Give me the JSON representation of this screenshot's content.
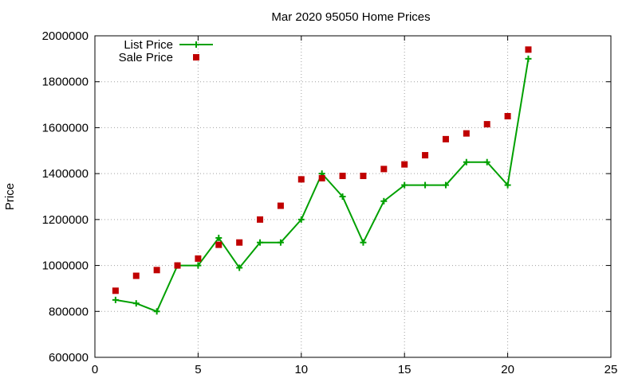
{
  "chart_data": {
    "type": "line",
    "title": "Mar 2020 95050 Home Prices",
    "xlabel": "",
    "ylabel": "Price",
    "xlim": [
      0,
      25
    ],
    "ylim": [
      600000,
      2000000
    ],
    "xticks": [
      0,
      5,
      10,
      15,
      20,
      25
    ],
    "yticks": [
      600000,
      800000,
      1000000,
      1200000,
      1400000,
      1600000,
      1800000,
      2000000
    ],
    "grid": true,
    "legend_position": "top-left",
    "series": [
      {
        "name": "List Price",
        "style": "line-with-plus-markers",
        "color": "#00a000",
        "x": [
          1,
          2,
          3,
          4,
          5,
          6,
          7,
          8,
          9,
          10,
          11,
          12,
          13,
          14,
          15,
          16,
          17,
          18,
          19,
          20,
          21
        ],
        "values": [
          850000,
          835000,
          800000,
          1000000,
          1000000,
          1120000,
          990000,
          1100000,
          1100000,
          1200000,
          1400000,
          1300000,
          1100000,
          1280000,
          1350000,
          1350000,
          1350000,
          1450000,
          1450000,
          1350000,
          1900000
        ]
      },
      {
        "name": "Sale Price",
        "style": "square-markers",
        "color": "#c00000",
        "x": [
          1,
          2,
          3,
          4,
          5,
          6,
          7,
          8,
          9,
          10,
          11,
          12,
          13,
          14,
          15,
          16,
          17,
          18,
          19,
          20,
          21
        ],
        "values": [
          890000,
          955000,
          980000,
          1000000,
          1030000,
          1090000,
          1100000,
          1200000,
          1260000,
          1375000,
          1380000,
          1390000,
          1390000,
          1420000,
          1440000,
          1480000,
          1550000,
          1575000,
          1615000,
          1650000,
          1940000
        ]
      }
    ]
  }
}
